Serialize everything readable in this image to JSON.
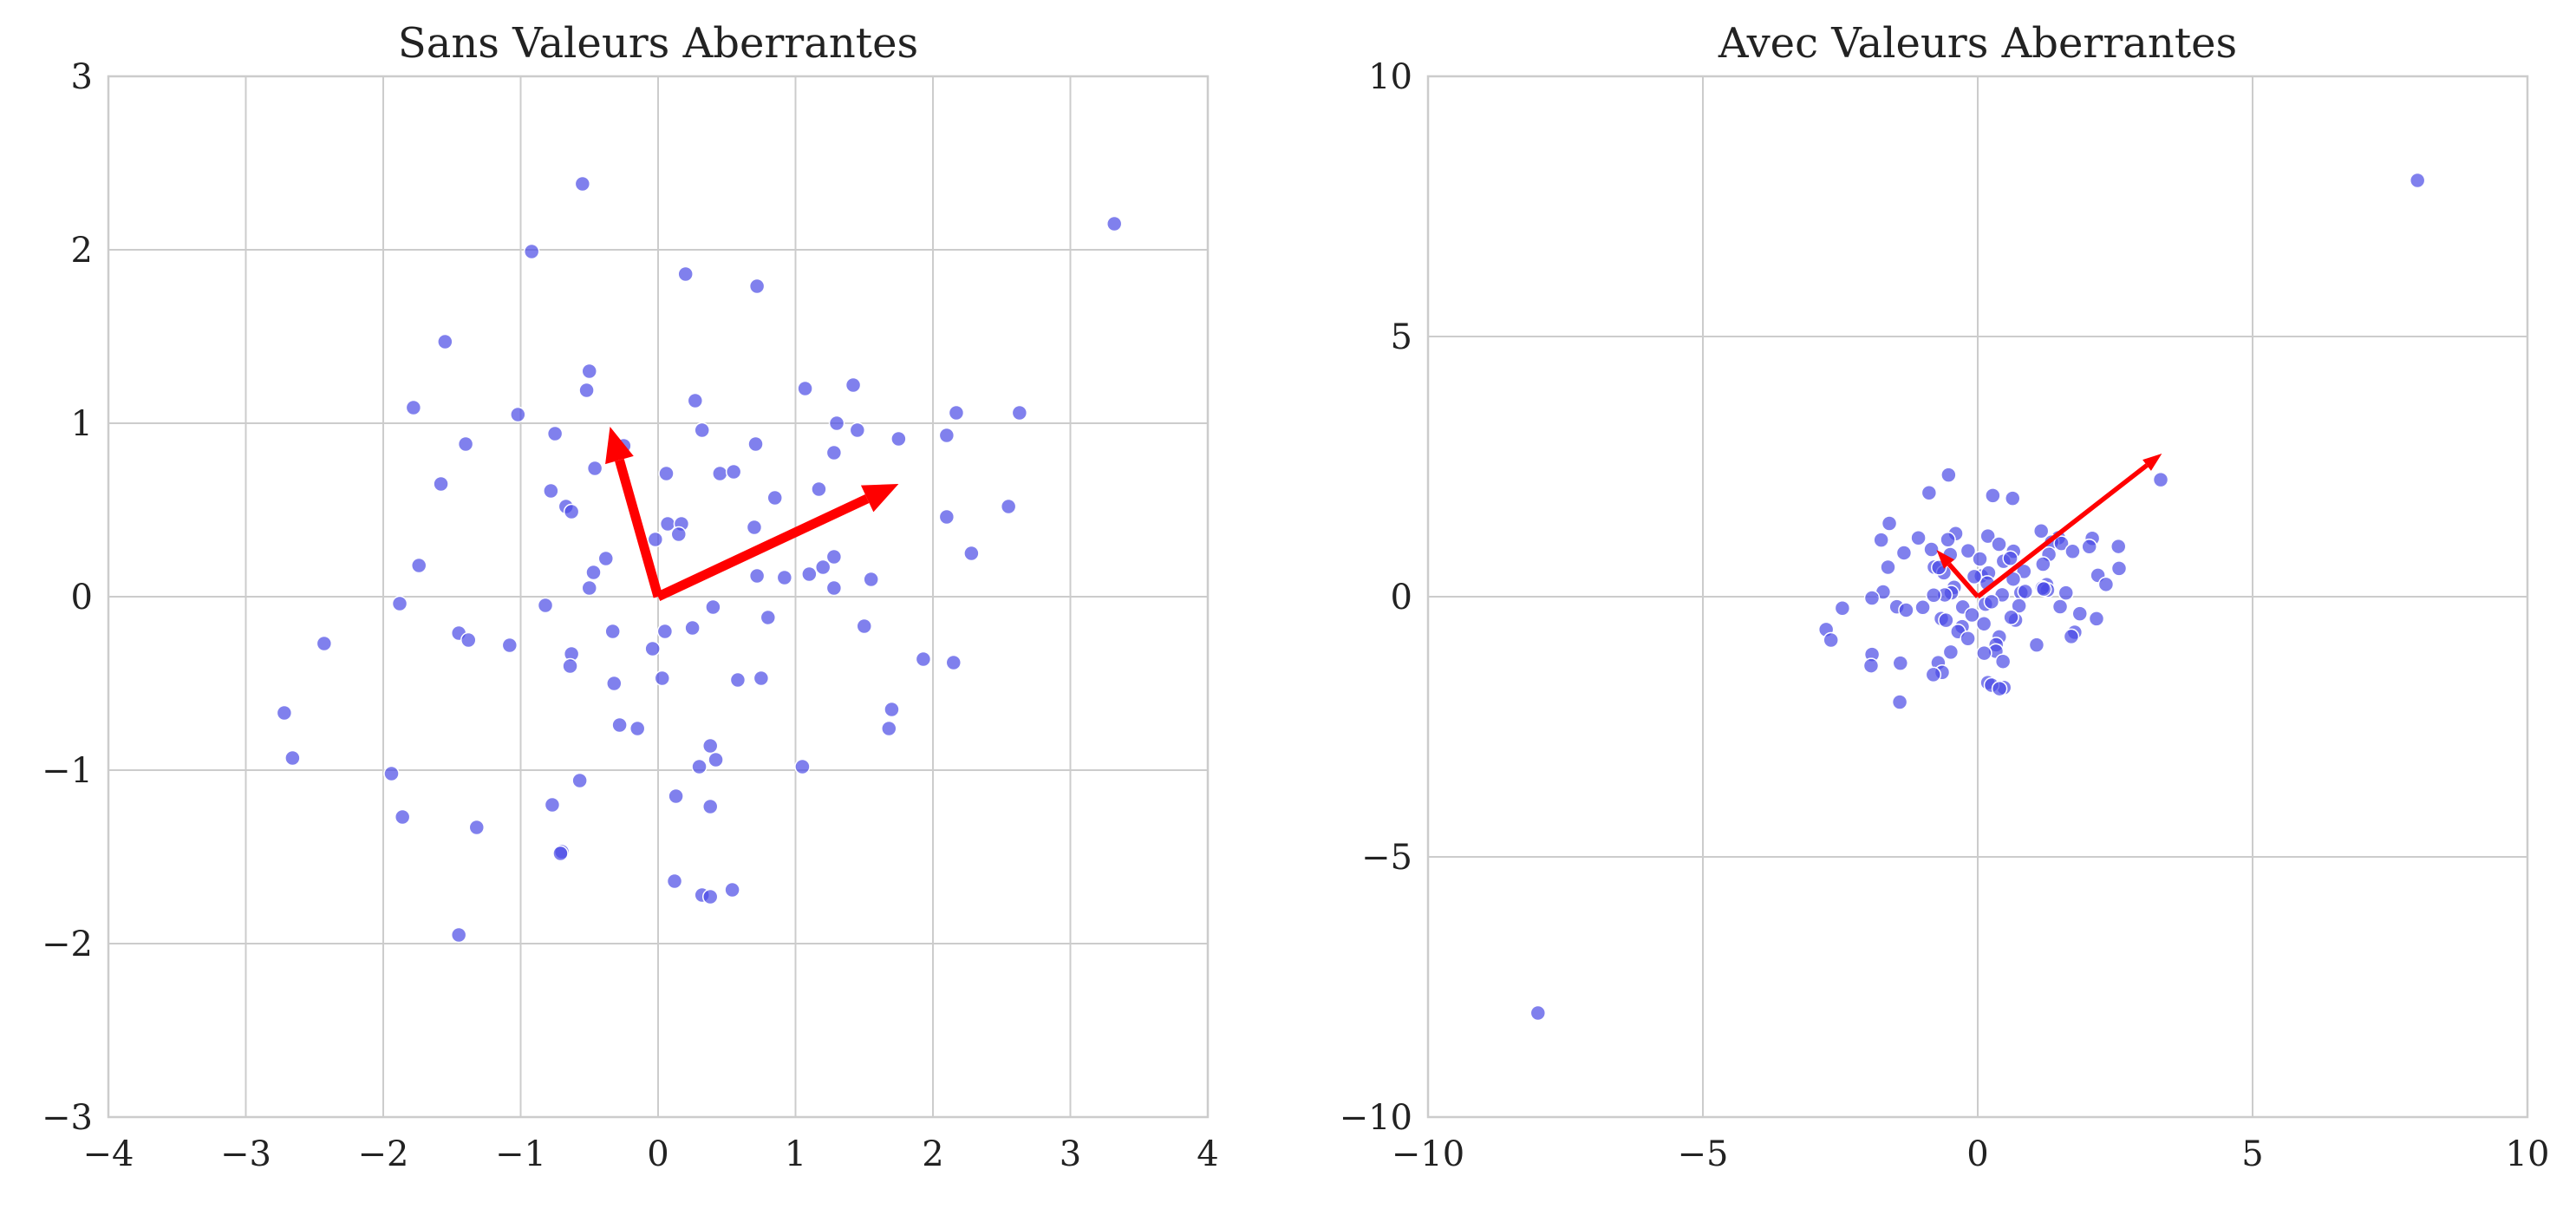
{
  "figure": {
    "left_title": "Sans Valeurs Aberrantes",
    "right_title": "Avec Valeurs Aberrantes"
  },
  "chart_data": [
    {
      "type": "scatter",
      "title": "Sans Valeurs Aberrantes",
      "xlabel": "",
      "ylabel": "",
      "xlim": [
        -4,
        4
      ],
      "ylim": [
        -3,
        3
      ],
      "xticks": [
        -4,
        -3,
        -2,
        -1,
        0,
        1,
        2,
        3,
        4
      ],
      "yticks": [
        -3,
        -2,
        -1,
        0,
        1,
        2,
        3
      ],
      "grid": true,
      "point_color": "#4a4ae6",
      "arrow_color": "#ff0000",
      "points": [
        [
          -0.55,
          2.38
        ],
        [
          3.32,
          2.15
        ],
        [
          -0.92,
          1.99
        ],
        [
          0.2,
          1.86
        ],
        [
          0.72,
          1.79
        ],
        [
          -1.55,
          1.47
        ],
        [
          -0.5,
          1.3
        ],
        [
          -0.52,
          1.19
        ],
        [
          0.27,
          1.13
        ],
        [
          1.07,
          1.2
        ],
        [
          1.42,
          1.22
        ],
        [
          -1.78,
          1.09
        ],
        [
          -1.02,
          1.05
        ],
        [
          2.17,
          1.06
        ],
        [
          2.63,
          1.06
        ],
        [
          1.3,
          1.0
        ],
        [
          1.45,
          0.96
        ],
        [
          0.32,
          0.96
        ],
        [
          -0.75,
          0.94
        ],
        [
          2.1,
          0.93
        ],
        [
          1.75,
          0.91
        ],
        [
          -1.4,
          0.88
        ],
        [
          -0.25,
          0.87
        ],
        [
          0.71,
          0.88
        ],
        [
          1.28,
          0.83
        ],
        [
          -0.46,
          0.74
        ],
        [
          0.45,
          0.71
        ],
        [
          0.55,
          0.72
        ],
        [
          0.06,
          0.71
        ],
        [
          -1.58,
          0.65
        ],
        [
          1.17,
          0.62
        ],
        [
          -0.78,
          0.61
        ],
        [
          0.85,
          0.57
        ],
        [
          -0.67,
          0.52
        ],
        [
          -0.63,
          0.49
        ],
        [
          2.55,
          0.52
        ],
        [
          2.1,
          0.46
        ],
        [
          0.07,
          0.42
        ],
        [
          0.17,
          0.42
        ],
        [
          0.7,
          0.4
        ],
        [
          0.15,
          0.36
        ],
        [
          -0.02,
          0.33
        ],
        [
          2.28,
          0.25
        ],
        [
          1.28,
          0.23
        ],
        [
          -0.38,
          0.22
        ],
        [
          1.2,
          0.17
        ],
        [
          -1.74,
          0.18
        ],
        [
          1.1,
          0.13
        ],
        [
          -0.47,
          0.14
        ],
        [
          0.72,
          0.12
        ],
        [
          0.92,
          0.11
        ],
        [
          1.55,
          0.1
        ],
        [
          -0.5,
          0.05
        ],
        [
          1.28,
          0.05
        ],
        [
          -1.88,
          -0.04
        ],
        [
          -0.82,
          -0.05
        ],
        [
          0.4,
          -0.06
        ],
        [
          0.8,
          -0.12
        ],
        [
          1.5,
          -0.17
        ],
        [
          -0.33,
          -0.2
        ],
        [
          0.05,
          -0.2
        ],
        [
          0.25,
          -0.18
        ],
        [
          -1.45,
          -0.21
        ],
        [
          -1.38,
          -0.25
        ],
        [
          -2.43,
          -0.27
        ],
        [
          -1.08,
          -0.28
        ],
        [
          -0.04,
          -0.3
        ],
        [
          -0.63,
          -0.33
        ],
        [
          1.93,
          -0.36
        ],
        [
          -0.64,
          -0.4
        ],
        [
          2.15,
          -0.38
        ],
        [
          0.75,
          -0.47
        ],
        [
          0.58,
          -0.48
        ],
        [
          0.03,
          -0.47
        ],
        [
          -0.32,
          -0.5
        ],
        [
          1.7,
          -0.65
        ],
        [
          -2.72,
          -0.67
        ],
        [
          -0.28,
          -0.74
        ],
        [
          -0.15,
          -0.76
        ],
        [
          1.68,
          -0.76
        ],
        [
          0.38,
          -0.86
        ],
        [
          -2.66,
          -0.93
        ],
        [
          0.42,
          -0.94
        ],
        [
          0.3,
          -0.98
        ],
        [
          1.05,
          -0.98
        ],
        [
          -1.94,
          -1.02
        ],
        [
          -0.57,
          -1.06
        ],
        [
          0.13,
          -1.15
        ],
        [
          -0.77,
          -1.2
        ],
        [
          0.38,
          -1.21
        ],
        [
          -1.86,
          -1.27
        ],
        [
          -1.32,
          -1.33
        ],
        [
          -0.7,
          -1.47
        ],
        [
          -0.71,
          -1.48
        ],
        [
          0.12,
          -1.64
        ],
        [
          0.54,
          -1.69
        ],
        [
          0.32,
          -1.72
        ],
        [
          0.38,
          -1.73
        ],
        [
          -1.45,
          -1.95
        ]
      ],
      "arrows": [
        {
          "x0": 0,
          "y0": 0,
          "x1": 1.75,
          "y1": 0.65
        },
        {
          "x0": 0,
          "y0": 0,
          "x1": -0.35,
          "y1": 0.98
        }
      ]
    },
    {
      "type": "scatter",
      "title": "Avec Valeurs Aberrantes",
      "xlabel": "",
      "ylabel": "",
      "xlim": [
        -10,
        10
      ],
      "ylim": [
        -10,
        10
      ],
      "xticks": [
        -10,
        -5,
        0,
        5,
        10
      ],
      "yticks": [
        -10,
        -5,
        0,
        5,
        10
      ],
      "grid": true,
      "point_color": "#4a4ae6",
      "arrow_color": "#ff0000",
      "outliers": [
        [
          8.0,
          8.0
        ],
        [
          -8.0,
          -8.0
        ]
      ],
      "arrows": [
        {
          "x0": 0,
          "y0": 0,
          "x1": 3.35,
          "y1": 2.75
        },
        {
          "x0": 0,
          "y0": 0,
          "x1": -0.75,
          "y1": 0.9
        }
      ]
    }
  ]
}
